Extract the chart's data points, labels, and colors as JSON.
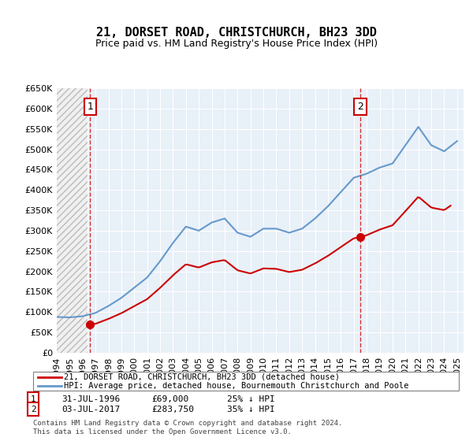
{
  "title": "21, DORSET ROAD, CHRISTCHURCH, BH23 3DD",
  "subtitle": "Price paid vs. HM Land Registry's House Price Index (HPI)",
  "legend_line1": "21, DORSET ROAD, CHRISTCHURCH, BH23 3DD (detached house)",
  "legend_line2": "HPI: Average price, detached house, Bournemouth Christchurch and Poole",
  "annotation1_label": "1",
  "annotation1_date": "31-JUL-1996",
  "annotation1_price": "£69,000",
  "annotation1_hpi": "25% ↓ HPI",
  "annotation2_label": "2",
  "annotation2_date": "03-JUL-2017",
  "annotation2_price": "£283,750",
  "annotation2_hpi": "35% ↓ HPI",
  "footer": "Contains HM Land Registry data © Crown copyright and database right 2024.\nThis data is licensed under the Open Government Licence v3.0.",
  "purchase1_year": 1996.58,
  "purchase1_price": 69000,
  "purchase2_year": 2017.5,
  "purchase2_price": 283750,
  "hpi_color": "#6699cc",
  "price_color": "#cc0000",
  "dot_color": "#cc0000",
  "annotation_box_color": "#cc0000",
  "grid_bg_color": "#e8f0f8",
  "hatch_color": "#cccccc",
  "ylim": [
    0,
    650000
  ],
  "xlim_start": 1994,
  "xlim_end": 2025.5
}
